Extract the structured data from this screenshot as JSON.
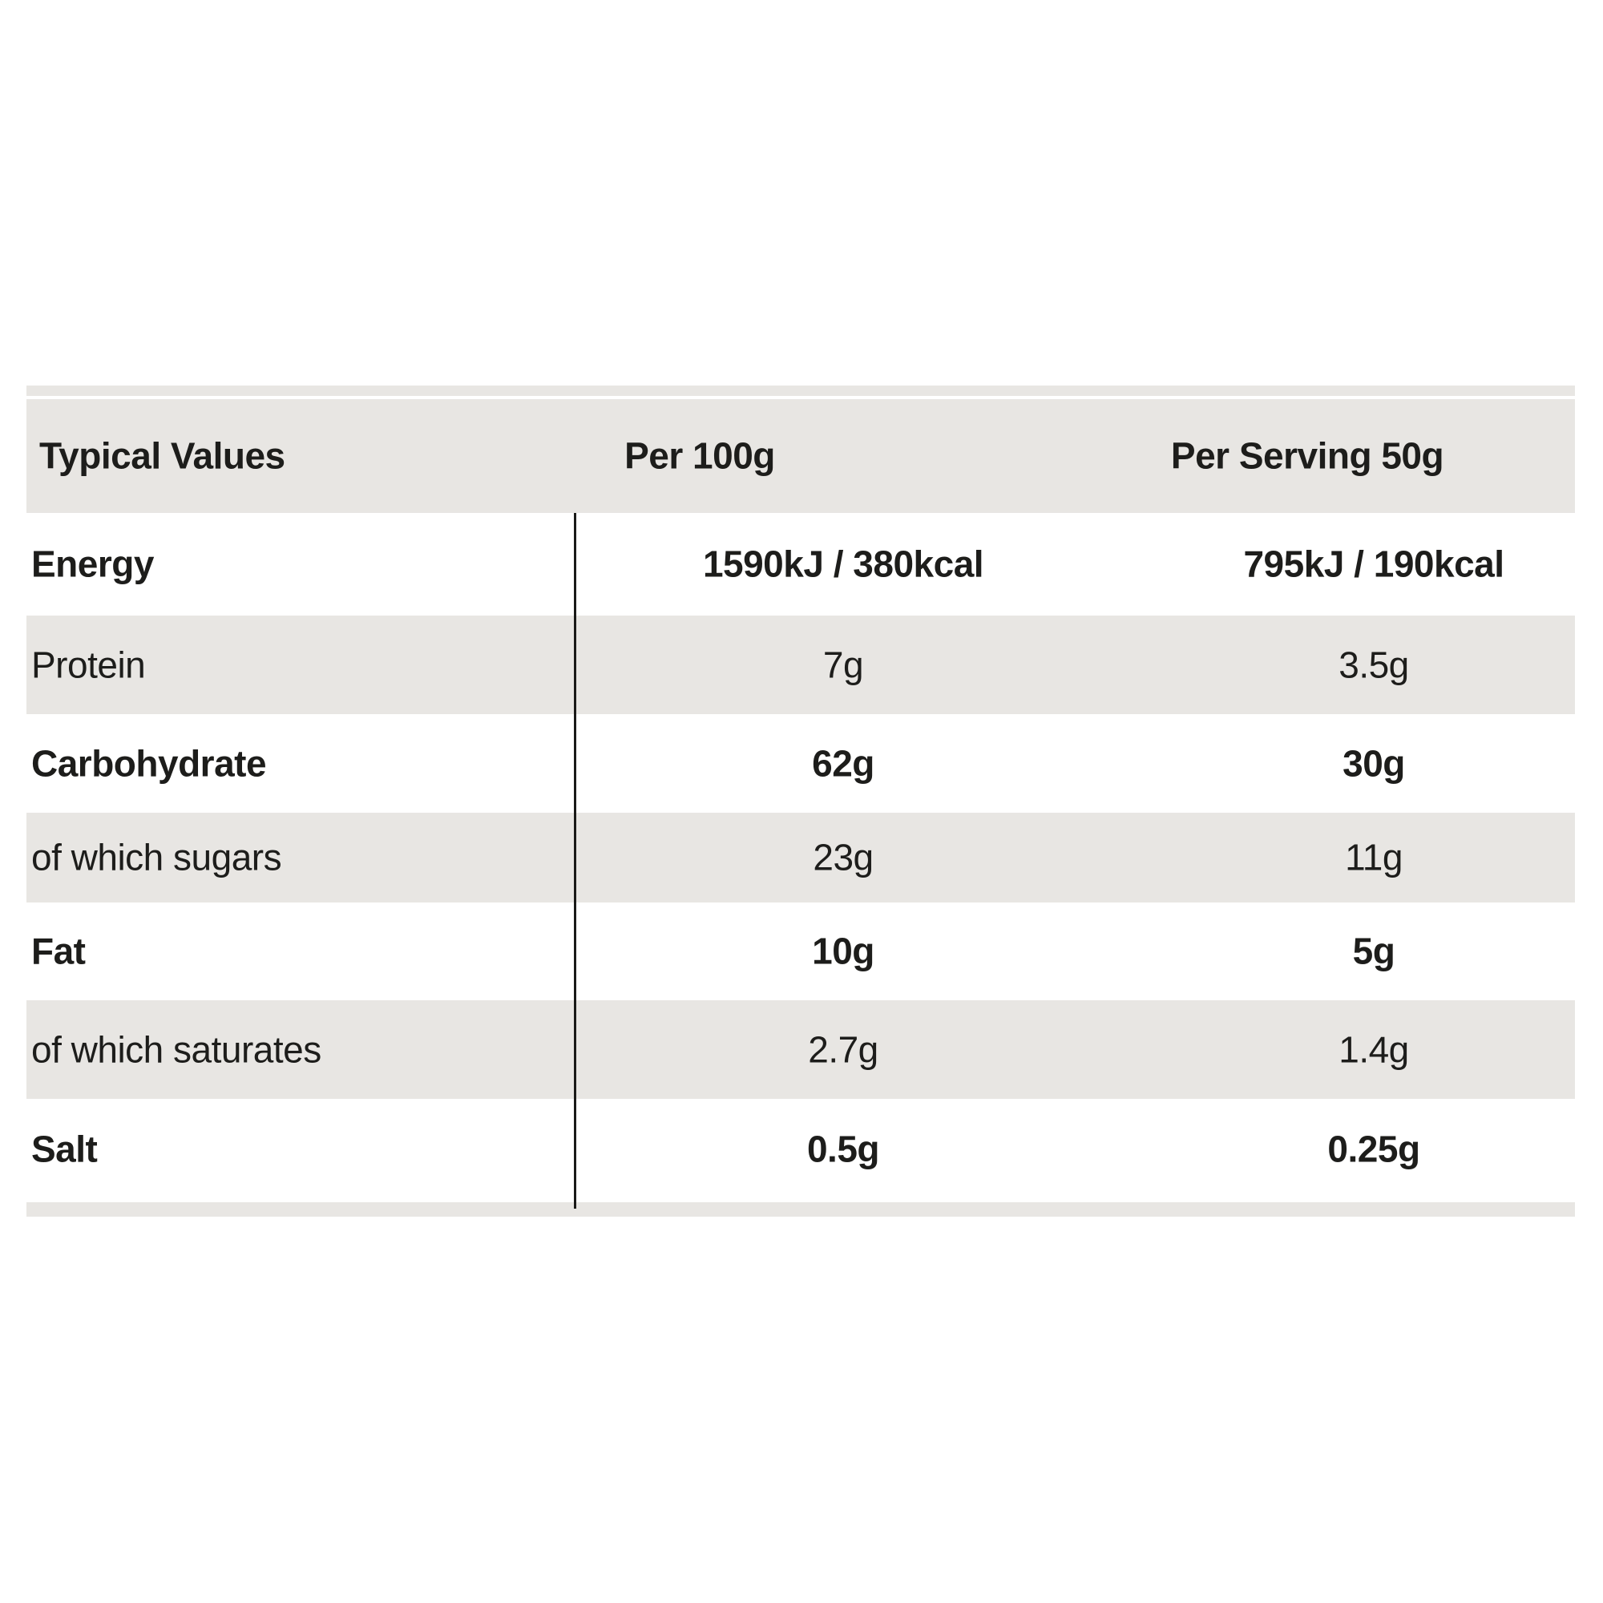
{
  "nutrition_table": {
    "header": {
      "label": "Typical Values",
      "per_100g": "Per 100g",
      "per_serving": "Per Serving 50g"
    },
    "rows": [
      {
        "label": "Energy",
        "per_100g": "1590kJ / 380kcal",
        "per_serving": "795kJ / 190kcal",
        "bold": true,
        "shaded": false
      },
      {
        "label": "Protein",
        "per_100g": "7g",
        "per_serving": "3.5g",
        "bold": false,
        "shaded": true
      },
      {
        "label": "Carbohydrate",
        "per_100g": "62g",
        "per_serving": "30g",
        "bold": true,
        "shaded": false
      },
      {
        "label": "of which sugars",
        "per_100g": "23g",
        "per_serving": "11g",
        "bold": false,
        "shaded": true
      },
      {
        "label": "Fat",
        "per_100g": "10g",
        "per_serving": "5g",
        "bold": true,
        "shaded": false
      },
      {
        "label": "of which saturates",
        "per_100g": "2.7g",
        "per_serving": "1.4g",
        "bold": false,
        "shaded": true
      },
      {
        "label": "Salt",
        "per_100g": "0.5g",
        "per_serving": "0.25g",
        "bold": true,
        "shaded": false
      }
    ],
    "colors": {
      "row_shade": "#e8e6e3",
      "text": "#1d1d1b",
      "divider": "#1a1a18",
      "page_background": "#ffffff"
    }
  }
}
